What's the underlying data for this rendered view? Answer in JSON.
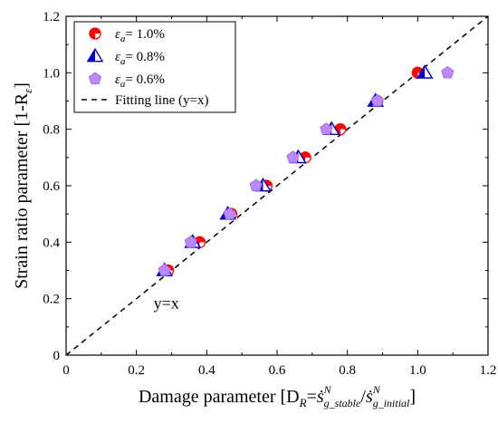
{
  "chart_data": {
    "type": "scatter",
    "title": "",
    "xlabel": "Damage parameter [D",
    "xlabel_sub_R": "R",
    "xlabel_eq": "=",
    "xlabel_s1": "ṡ",
    "xlabel_sub1": "g_stable",
    "xlabel_sup1": "N",
    "xlabel_slash": "/",
    "xlabel_s2": "ṡ",
    "xlabel_sub2": "g_initial",
    "xlabel_sup2": "N",
    "xlabel_end": "]",
    "ylabel": "Strain ratio parameter [1-R",
    "ylabel_sub": "ε",
    "ylabel_end": "]",
    "xlim": [
      0,
      1.2
    ],
    "ylim": [
      0,
      1.2
    ],
    "xticks": [
      "0",
      "0.2",
      "0.4",
      "0.6",
      "0.8",
      "1.0",
      "1.2"
    ],
    "yticks": [
      "0",
      "0.2",
      "0.4",
      "0.6",
      "0.8",
      "1.0",
      "1.2"
    ],
    "grid": false,
    "legend_position": "top-left",
    "series": [
      {
        "name": "εa= 1.0%",
        "name_eps": "ε",
        "name_sub": "a",
        "name_rest": "= 1.0%",
        "marker": "half-filled-circle",
        "color": "#ff0000",
        "x": [
          0.29,
          0.38,
          0.47,
          0.57,
          0.68,
          0.78,
          0.885,
          1.0
        ],
        "y": [
          0.3,
          0.4,
          0.5,
          0.6,
          0.7,
          0.8,
          0.9,
          1.0
        ]
      },
      {
        "name": "εa= 0.8%",
        "name_eps": "ε",
        "name_sub": "a",
        "name_rest": "= 0.8%",
        "marker": "half-filled-triangle",
        "color": "#0000cc",
        "x": [
          0.28,
          0.36,
          0.46,
          0.56,
          0.66,
          0.755,
          0.88,
          1.02
        ],
        "y": [
          0.3,
          0.4,
          0.5,
          0.6,
          0.7,
          0.8,
          0.9,
          1.0
        ]
      },
      {
        "name": "εa= 0.6%",
        "name_eps": "ε",
        "name_sub": "a",
        "name_rest": "= 0.6%",
        "marker": "pentagon",
        "color": "#bb88ff",
        "x": [
          0.28,
          0.355,
          0.465,
          0.54,
          0.645,
          0.74,
          0.885,
          1.085
        ],
        "y": [
          0.3,
          0.4,
          0.5,
          0.6,
          0.7,
          0.8,
          0.9,
          1.0
        ]
      }
    ],
    "fit_line": {
      "name": "Fitting line (y=x)",
      "style": "dashed",
      "color": "#000000",
      "x": [
        0,
        1.2
      ],
      "y": [
        0,
        1.2
      ]
    },
    "annotation": {
      "text": "y=x",
      "x": 0.29,
      "y": 0.185
    }
  }
}
